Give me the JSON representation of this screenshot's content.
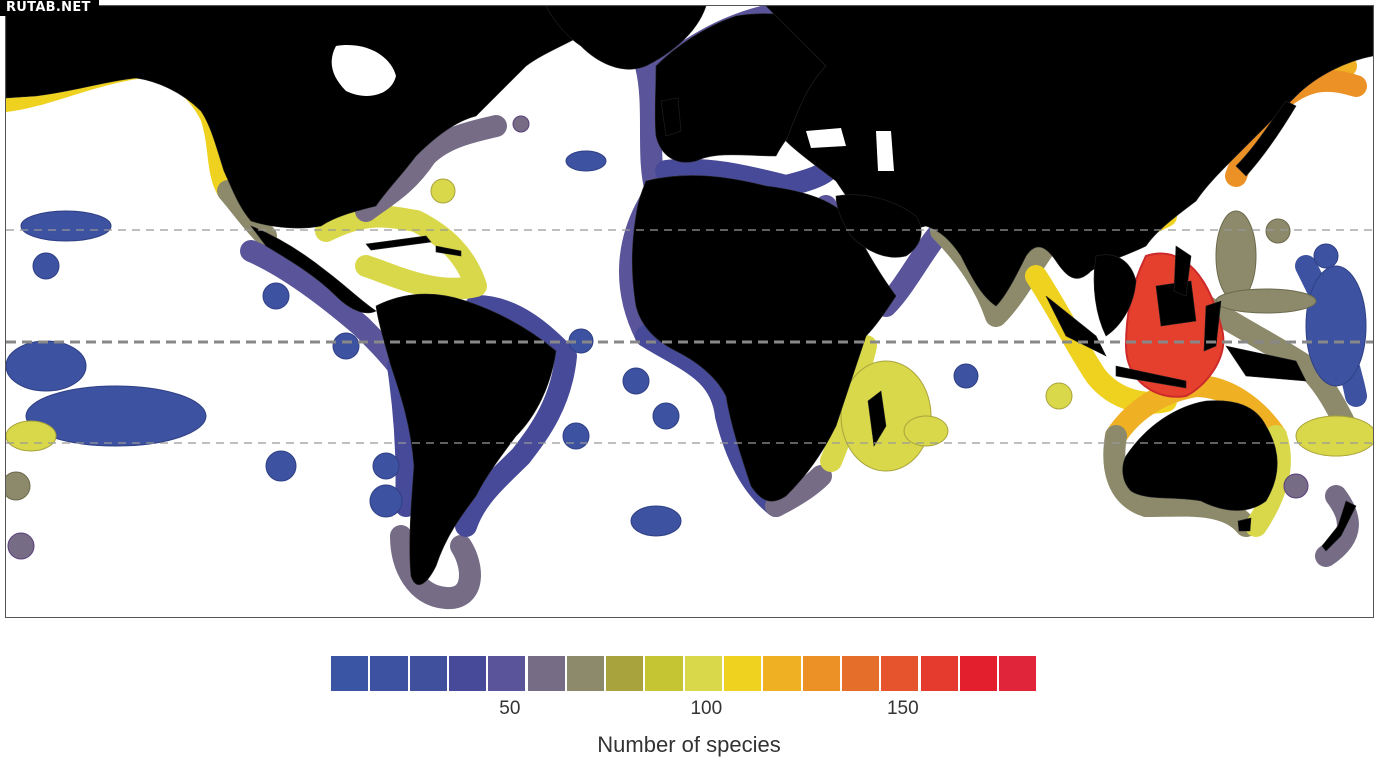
{
  "watermark": "RUTAB.NET",
  "map": {
    "reference_lines": [
      "dashed",
      "dashed-equator",
      "dashed"
    ],
    "land_color": "#000000",
    "ocean_color": "#ffffff"
  },
  "legend": {
    "title": "Number of species",
    "ticks": [
      {
        "value": "50",
        "index": 4
      },
      {
        "value": "100",
        "index": 9
      },
      {
        "value": "150",
        "index": 14
      }
    ],
    "colors": [
      "#3a55a4",
      "#3d52a0",
      "#40509c",
      "#474a98",
      "#5a559a",
      "#766c86",
      "#8c8a6a",
      "#a8a33c",
      "#c5c534",
      "#d9d84a",
      "#efd21f",
      "#efb023",
      "#ec9126",
      "#e66e2b",
      "#e5542d",
      "#e53a2e",
      "#e31f2e",
      "#e0243a"
    ]
  }
}
